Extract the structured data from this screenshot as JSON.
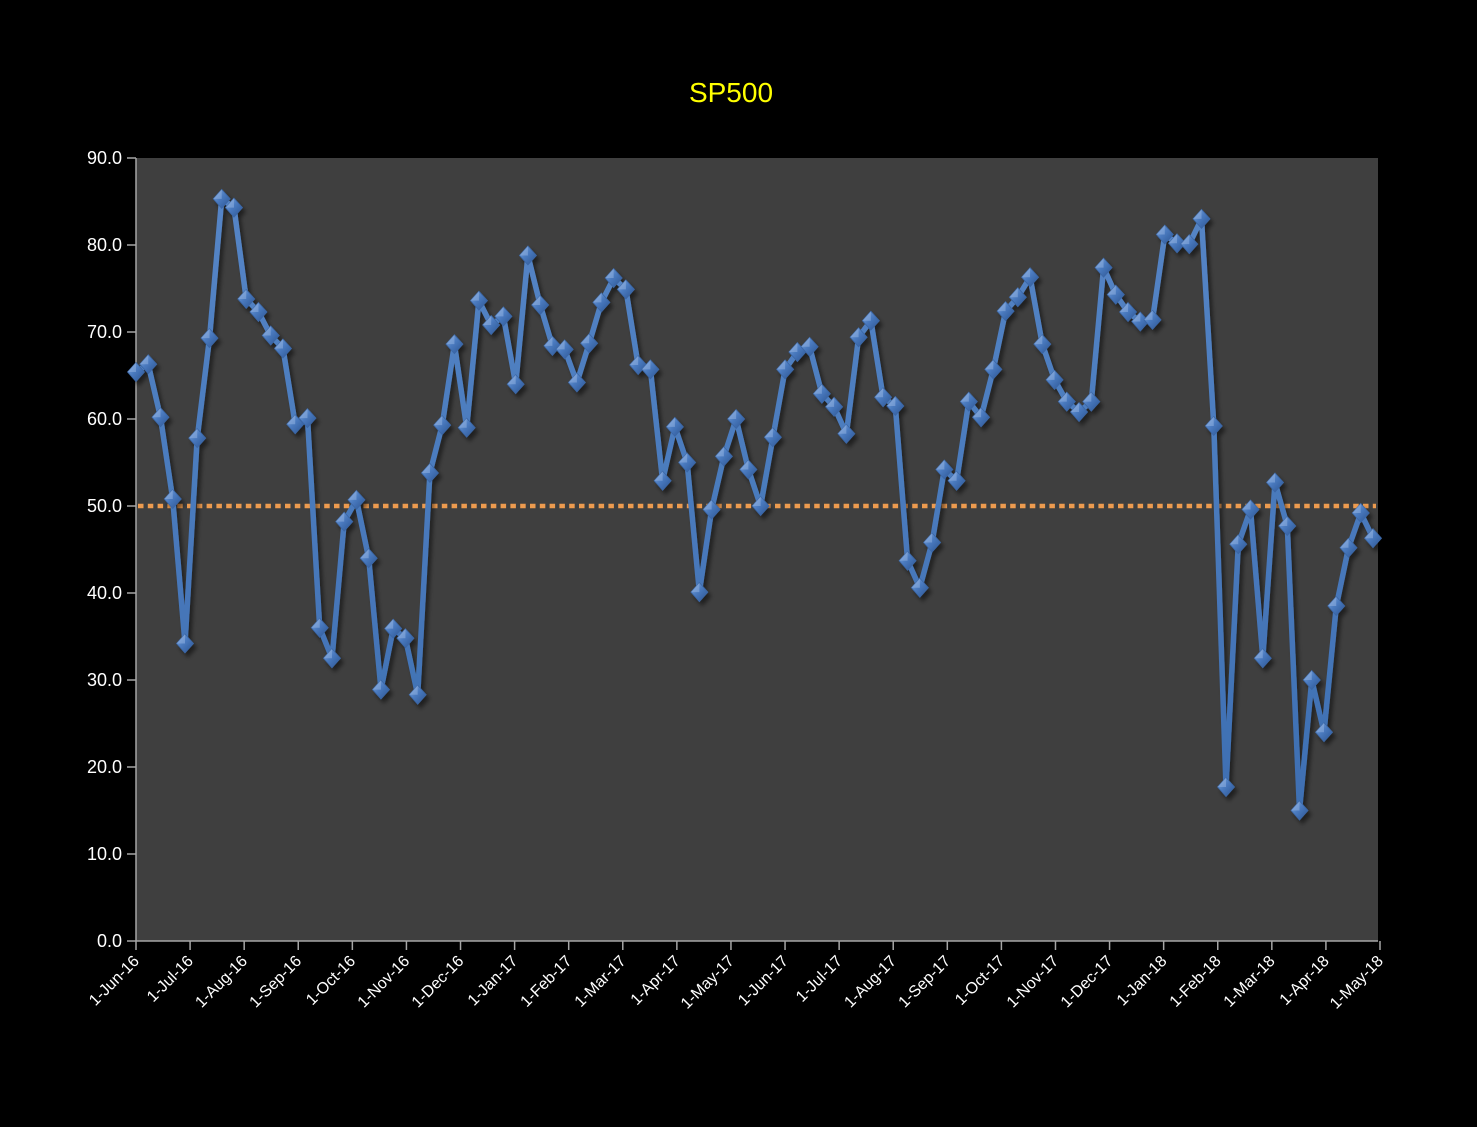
{
  "chart_data": {
    "type": "line",
    "title": "SP500",
    "frequency": "weekly",
    "xlabel": "",
    "ylabel": "",
    "ylim": [
      0,
      90
    ],
    "y_tick_step": 10,
    "grid": "off",
    "legend": "none",
    "y_tick_labels": [
      "90.0",
      "80.0",
      "70.0",
      "60.0",
      "50.0",
      "40.0",
      "30.0",
      "20.0",
      "10.0",
      "0.0"
    ],
    "x_tick_labels": [
      "1-Jun-16",
      "1-Jul-16",
      "1-Aug-16",
      "1-Sep-16",
      "1-Oct-16",
      "1-Nov-16",
      "1-Dec-16",
      "1-Jan-17",
      "1-Feb-17",
      "1-Mar-17",
      "1-Apr-17",
      "1-May-17",
      "1-Jun-17",
      "1-Jul-17",
      "1-Aug-17",
      "1-Sep-17",
      "1-Oct-17",
      "1-Nov-17",
      "1-Dec-17",
      "1-Jan-18",
      "1-Feb-18",
      "1-Mar-18",
      "1-Apr-18",
      "1-May-18"
    ],
    "reference_line": {
      "value": 50.0,
      "style": "dotted",
      "color": "#ED9B4F"
    },
    "series": [
      {
        "name": "SP500",
        "values": [
          65.4,
          66.3,
          60.2,
          50.8,
          34.2,
          57.8,
          69.3,
          85.3,
          84.3,
          73.8,
          72.3,
          69.6,
          68.1,
          59.4,
          60.1,
          36.0,
          32.5,
          48.2,
          50.7,
          44.0,
          28.9,
          35.9,
          34.8,
          28.3,
          53.8,
          59.3,
          68.6,
          59.0,
          73.6,
          70.8,
          71.8,
          64.0,
          78.8,
          73.1,
          68.4,
          68.0,
          64.2,
          68.7,
          73.4,
          76.2,
          74.9,
          66.2,
          65.7,
          52.9,
          59.1,
          55.0,
          40.1,
          49.6,
          55.7,
          60.0,
          54.2,
          50.0,
          57.9,
          65.7,
          67.7,
          68.3,
          62.9,
          61.4,
          58.3,
          69.4,
          71.3,
          62.5,
          61.5,
          43.7,
          40.6,
          45.8,
          54.2,
          52.9,
          62.0,
          60.2,
          65.7,
          72.4,
          74.0,
          76.3,
          68.6,
          64.5,
          62.0,
          60.8,
          62.0,
          77.4,
          74.3,
          72.3,
          71.2,
          71.4,
          81.2,
          80.2,
          80.1,
          83.0,
          59.2,
          17.7,
          45.6,
          49.6,
          32.5,
          52.7,
          47.7,
          15.0,
          30.0,
          24.0,
          38.5,
          45.2,
          49.2,
          46.3
        ]
      }
    ],
    "colors": {
      "page_background": "#000000",
      "plot_background": "#3F3F3F",
      "title": "#FFFF00",
      "axis_text": "#FFFFFF",
      "axis_line": "#A6A6A6",
      "series_line": "#4579BE",
      "marker_light": "#84AADD",
      "marker_mid": "#4A7ABF",
      "marker_dark": "#2B5492",
      "reference_line": "#ED9B4F"
    }
  }
}
